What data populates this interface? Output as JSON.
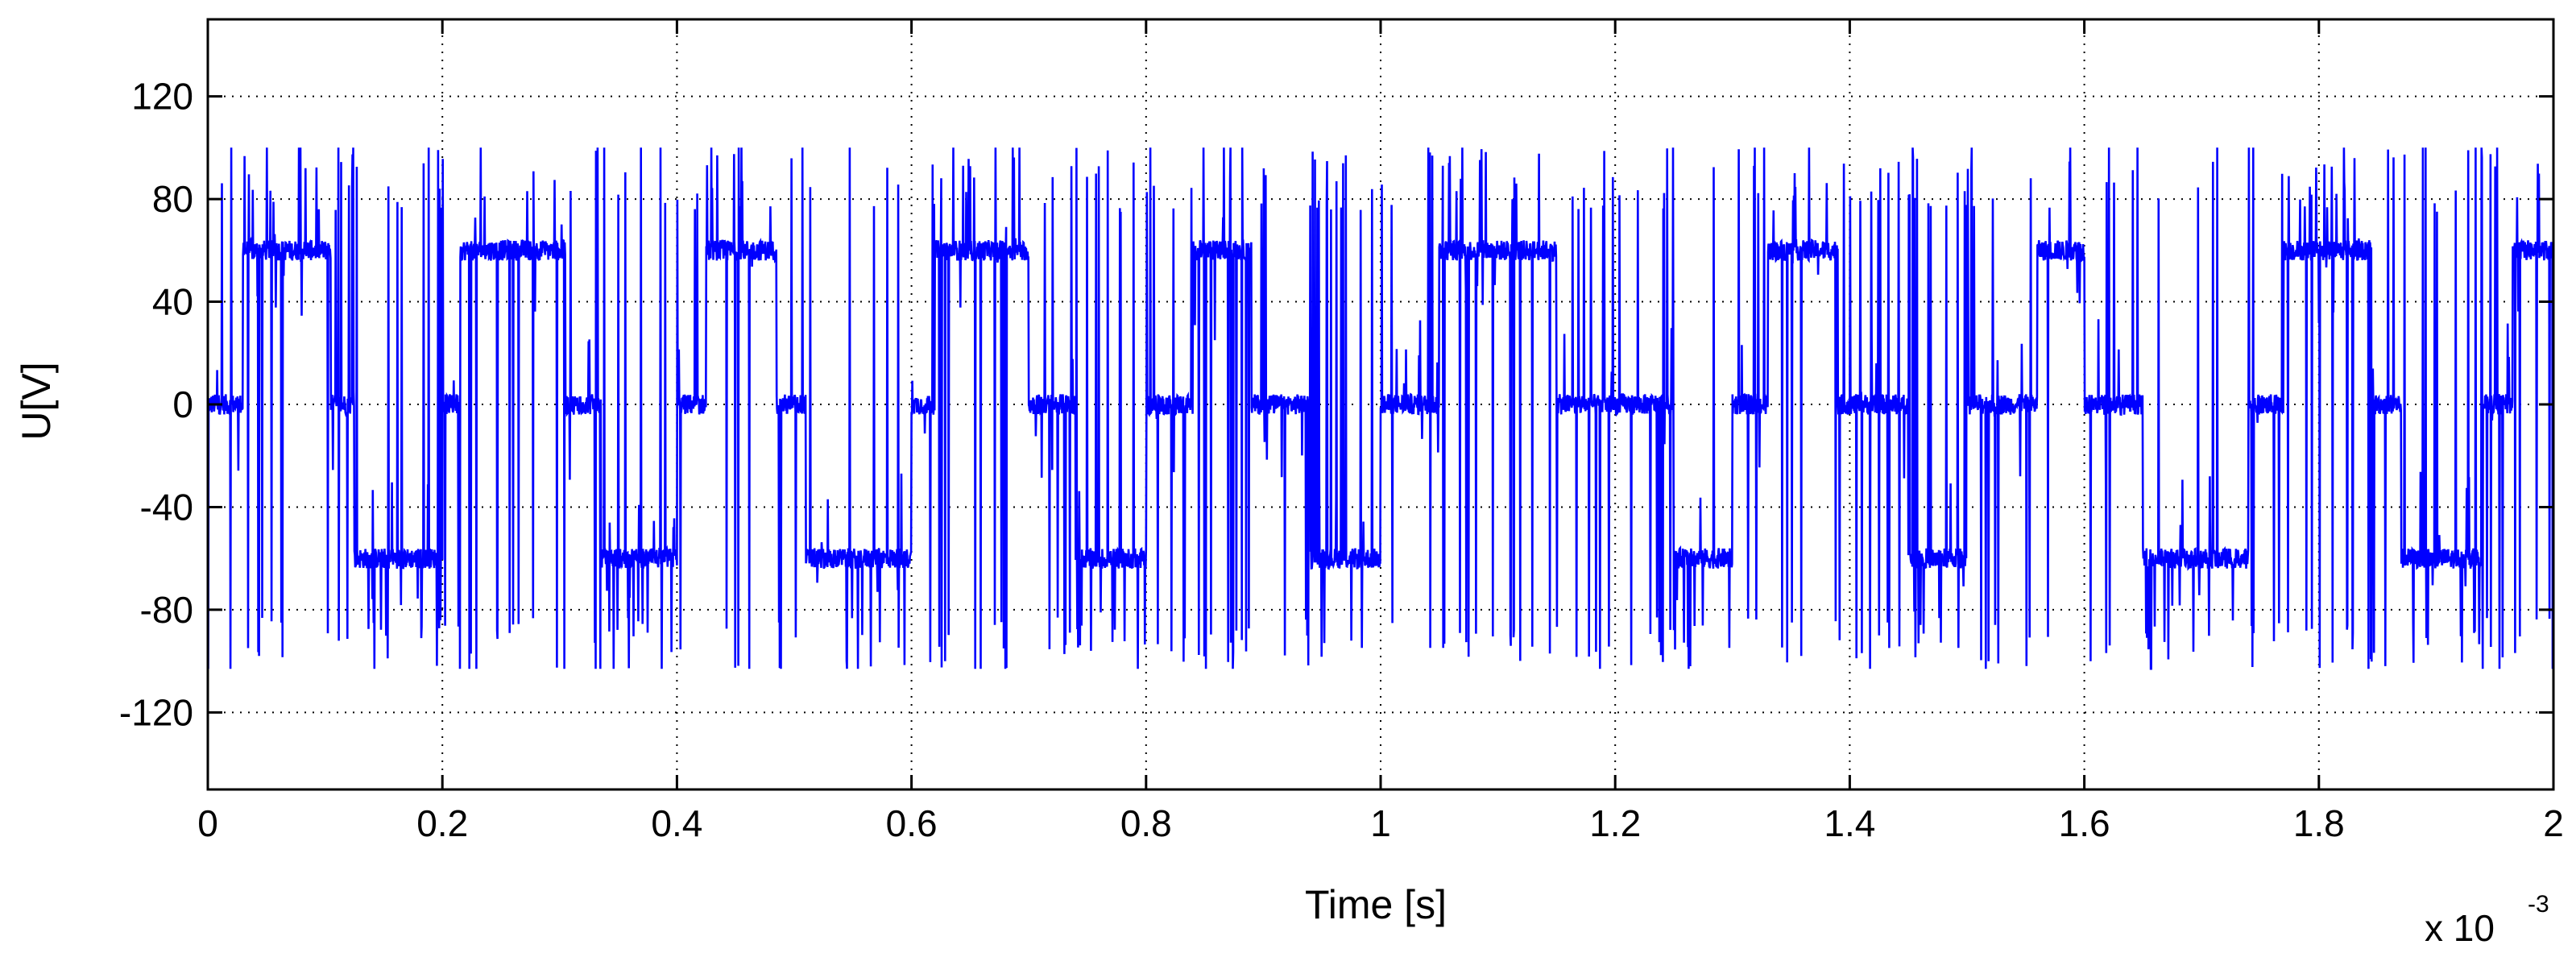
{
  "chart_data": {
    "type": "line",
    "title": "",
    "xlabel": "Time [s]",
    "ylabel": "U[V]",
    "x_scale_note": {
      "prefix": "x 10",
      "exponent": "-3"
    },
    "xlim": [
      0,
      2
    ],
    "ylim": [
      -150,
      150
    ],
    "x_ticks": [
      0,
      0.2,
      0.4,
      0.6,
      0.8,
      1,
      1.2,
      1.4,
      1.6,
      1.8,
      2
    ],
    "x_tick_labels": [
      "0",
      "0.2",
      "0.4",
      "0.6",
      "0.8",
      "1",
      "1.2",
      "1.4",
      "1.6",
      "1.8",
      "2"
    ],
    "y_ticks": [
      120,
      80,
      40,
      0,
      -40,
      -80,
      -120
    ],
    "y_tick_labels": [
      "120",
      "80",
      "40",
      "0",
      "-40",
      "-80",
      "-120"
    ],
    "grid": true,
    "series": [
      {
        "color": "#0000ff",
        "description": "PWM line voltage waveform switching between levels 0, ±60 V with spikes to about +100 V and -103 V",
        "levels": [
          0,
          60,
          -60
        ],
        "spike_max": 100,
        "spike_min": -103,
        "segments": [
          {
            "start": 0.0,
            "end": 0.03,
            "level": 0
          },
          {
            "start": 0.03,
            "end": 0.105,
            "level": 60
          },
          {
            "start": 0.105,
            "end": 0.125,
            "level": 0
          },
          {
            "start": 0.125,
            "end": 0.2,
            "level": -60
          },
          {
            "start": 0.2,
            "end": 0.215,
            "level": 0
          },
          {
            "start": 0.215,
            "end": 0.305,
            "level": 60
          },
          {
            "start": 0.305,
            "end": 0.335,
            "level": 0
          },
          {
            "start": 0.335,
            "end": 0.4,
            "level": -60
          },
          {
            "start": 0.4,
            "end": 0.425,
            "level": 0
          },
          {
            "start": 0.425,
            "end": 0.485,
            "level": 60
          },
          {
            "start": 0.485,
            "end": 0.51,
            "level": 0
          },
          {
            "start": 0.51,
            "end": 0.6,
            "level": -60
          },
          {
            "start": 0.6,
            "end": 0.62,
            "level": 0
          },
          {
            "start": 0.62,
            "end": 0.7,
            "level": 60
          },
          {
            "start": 0.7,
            "end": 0.74,
            "level": 0
          },
          {
            "start": 0.74,
            "end": 0.8,
            "level": -60
          },
          {
            "start": 0.8,
            "end": 0.84,
            "level": 0
          },
          {
            "start": 0.84,
            "end": 0.89,
            "level": 60
          },
          {
            "start": 0.89,
            "end": 0.94,
            "level": 0
          },
          {
            "start": 0.94,
            "end": 1.0,
            "level": -60
          },
          {
            "start": 1.0,
            "end": 1.05,
            "level": 0
          },
          {
            "start": 1.05,
            "end": 1.15,
            "level": 60
          },
          {
            "start": 1.15,
            "end": 1.25,
            "level": 0
          },
          {
            "start": 1.25,
            "end": 1.3,
            "level": -60
          },
          {
            "start": 1.3,
            "end": 1.33,
            "level": 0
          },
          {
            "start": 1.33,
            "end": 1.39,
            "level": 60
          },
          {
            "start": 1.39,
            "end": 1.45,
            "level": 0
          },
          {
            "start": 1.45,
            "end": 1.5,
            "level": -60
          },
          {
            "start": 1.5,
            "end": 1.56,
            "level": 0
          },
          {
            "start": 1.56,
            "end": 1.6,
            "level": 60
          },
          {
            "start": 1.6,
            "end": 1.65,
            "level": 0
          },
          {
            "start": 1.65,
            "end": 1.74,
            "level": -60
          },
          {
            "start": 1.74,
            "end": 1.77,
            "level": 0
          },
          {
            "start": 1.77,
            "end": 1.845,
            "level": 60
          },
          {
            "start": 1.845,
            "end": 1.87,
            "level": 0
          },
          {
            "start": 1.87,
            "end": 1.94,
            "level": -60
          },
          {
            "start": 1.94,
            "end": 1.965,
            "level": 0
          },
          {
            "start": 1.965,
            "end": 2.0,
            "level": 60
          }
        ]
      }
    ]
  }
}
